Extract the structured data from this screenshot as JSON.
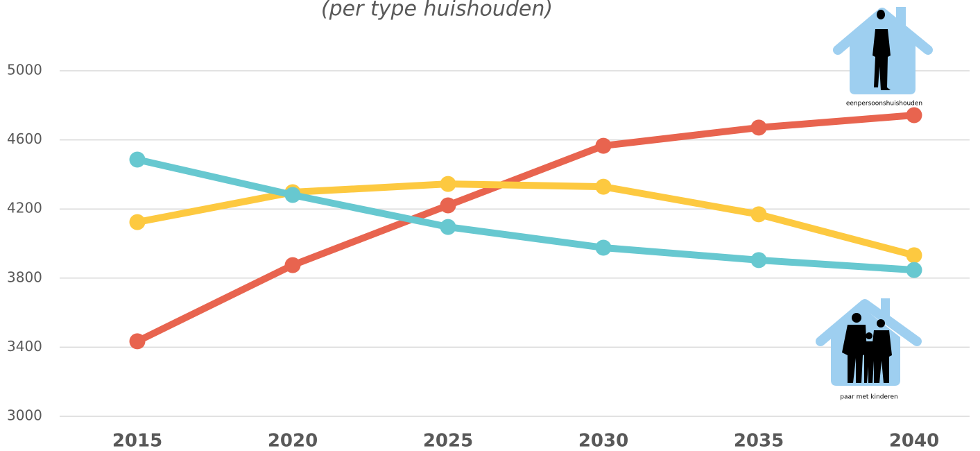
{
  "chart_data": {
    "type": "line",
    "subtitle": "(per type huishouden)",
    "categories": [
      "2015",
      "2020",
      "2025",
      "2030",
      "2035",
      "2040"
    ],
    "series": [
      {
        "color": "#e8644f",
        "values": [
          3434,
          3875,
          4221,
          4566,
          4671,
          4743
        ]
      },
      {
        "color": "#fdc940",
        "values": [
          4124,
          4297,
          4345,
          4329,
          4169,
          3932
        ]
      },
      {
        "color": "#67c8d0",
        "values": [
          4486,
          4281,
          4096,
          3976,
          3904,
          3847
        ]
      }
    ],
    "ylim": [
      3000,
      5000
    ],
    "yticks": [
      3000,
      3400,
      3800,
      4200,
      4600,
      5000
    ],
    "grid": true,
    "annotations": [
      "eenpersoonshuishouden",
      "paar met kinderen"
    ]
  }
}
